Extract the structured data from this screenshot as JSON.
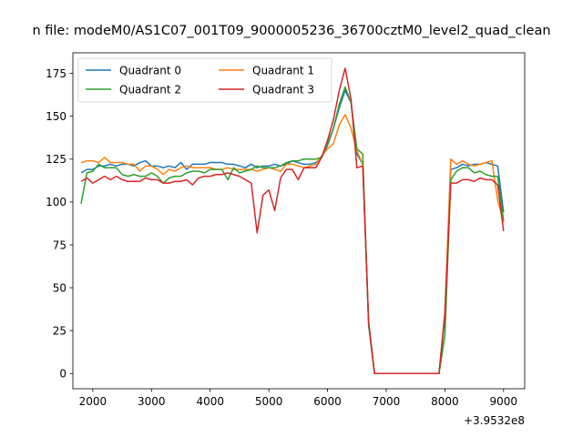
{
  "chart_data": {
    "type": "line",
    "title": "n file: modeM0/AS1C07_001T09_9000005236_36700cztM0_level2_quad_clean",
    "xlabel": "",
    "ylabel": "",
    "x_offset_label": "+3.9532e8",
    "x_offset": 395320000,
    "xlim": [
      395321660,
      395329360
    ],
    "ylim": [
      -8.9,
      187
    ],
    "x_ticks": [
      395322000,
      395323000,
      395324000,
      395325000,
      395326000,
      395327000,
      395328000,
      395329000
    ],
    "x_tick_labels": [
      "2000",
      "3000",
      "4000",
      "5000",
      "6000",
      "7000",
      "8000",
      "9000"
    ],
    "y_ticks": [
      0,
      25,
      50,
      75,
      100,
      125,
      150,
      175
    ],
    "y_tick_labels": [
      "0",
      "25",
      "50",
      "75",
      "100",
      "125",
      "150",
      "175"
    ],
    "grid": false,
    "legend": {
      "placement": "top-left",
      "columns": 2
    },
    "series": [
      {
        "name": "Quadrant 0",
        "color": "#1f77b4",
        "points": [
          [
            395321800,
            117
          ],
          [
            395321900,
            119
          ],
          [
            395322000,
            119
          ],
          [
            395322100,
            121
          ],
          [
            395322200,
            121
          ],
          [
            395322300,
            122
          ],
          [
            395322400,
            121
          ],
          [
            395322500,
            122
          ],
          [
            395322600,
            122
          ],
          [
            395322700,
            121
          ],
          [
            395322800,
            123
          ],
          [
            395322900,
            124
          ],
          [
            395323000,
            121
          ],
          [
            395323100,
            121
          ],
          [
            395323200,
            120
          ],
          [
            395323300,
            121
          ],
          [
            395323400,
            120
          ],
          [
            395323500,
            123
          ],
          [
            395323600,
            119
          ],
          [
            395323700,
            122
          ],
          [
            395323800,
            122
          ],
          [
            395323900,
            122
          ],
          [
            395324000,
            123
          ],
          [
            395324100,
            123
          ],
          [
            395324200,
            123
          ],
          [
            395324300,
            122
          ],
          [
            395324400,
            122
          ],
          [
            395324500,
            121
          ],
          [
            395324600,
            120
          ],
          [
            395324700,
            122
          ],
          [
            395324800,
            120
          ],
          [
            395324900,
            121
          ],
          [
            395325000,
            121
          ],
          [
            395325100,
            122
          ],
          [
            395325200,
            121
          ],
          [
            395325300,
            122
          ],
          [
            395325400,
            124
          ],
          [
            395325500,
            123
          ],
          [
            395325600,
            122
          ],
          [
            395325700,
            122
          ],
          [
            395325800,
            123
          ],
          [
            395325900,
            126
          ],
          [
            395326000,
            133
          ],
          [
            395326100,
            143
          ],
          [
            395326200,
            155
          ],
          [
            395326300,
            165
          ],
          [
            395326400,
            158
          ],
          [
            395326500,
            128
          ],
          [
            395326600,
            122
          ],
          [
            395326700,
            30
          ],
          [
            395326800,
            0
          ],
          [
            395326900,
            0
          ],
          [
            395327000,
            0
          ],
          [
            395327100,
            0
          ],
          [
            395327200,
            0
          ],
          [
            395327300,
            0
          ],
          [
            395327400,
            0
          ],
          [
            395327500,
            0
          ],
          [
            395327600,
            0
          ],
          [
            395327700,
            0
          ],
          [
            395327800,
            0
          ],
          [
            395327900,
            0
          ],
          [
            395328000,
            33
          ],
          [
            395328100,
            119
          ],
          [
            395328200,
            120
          ],
          [
            395328300,
            122
          ],
          [
            395328400,
            121
          ],
          [
            395328500,
            122
          ],
          [
            395328600,
            122
          ],
          [
            395328700,
            123
          ],
          [
            395328800,
            122
          ],
          [
            395328900,
            121
          ],
          [
            395329000,
            94
          ]
        ]
      },
      {
        "name": "Quadrant 1",
        "color": "#ff7f0e",
        "points": [
          [
            395321800,
            123
          ],
          [
            395321900,
            124
          ],
          [
            395322000,
            124
          ],
          [
            395322100,
            123
          ],
          [
            395322200,
            126
          ],
          [
            395322300,
            123
          ],
          [
            395322400,
            123
          ],
          [
            395322500,
            123
          ],
          [
            395322600,
            122
          ],
          [
            395322700,
            122
          ],
          [
            395322800,
            118
          ],
          [
            395322900,
            121
          ],
          [
            395323000,
            121
          ],
          [
            395323100,
            119
          ],
          [
            395323200,
            116
          ],
          [
            395323300,
            119
          ],
          [
            395323400,
            118
          ],
          [
            395323500,
            120
          ],
          [
            395323600,
            121
          ],
          [
            395323700,
            120
          ],
          [
            395323800,
            120
          ],
          [
            395323900,
            120
          ],
          [
            395324000,
            120
          ],
          [
            395324100,
            119
          ],
          [
            395324200,
            119
          ],
          [
            395324300,
            120
          ],
          [
            395324400,
            119
          ],
          [
            395324500,
            119
          ],
          [
            395324600,
            119
          ],
          [
            395324700,
            119
          ],
          [
            395324800,
            118
          ],
          [
            395324900,
            119
          ],
          [
            395325000,
            120
          ],
          [
            395325100,
            119
          ],
          [
            395325200,
            118
          ],
          [
            395325300,
            122
          ],
          [
            395325400,
            122
          ],
          [
            395325500,
            121
          ],
          [
            395325600,
            120
          ],
          [
            395325700,
            121
          ],
          [
            395325800,
            122
          ],
          [
            395325900,
            127
          ],
          [
            395326000,
            131
          ],
          [
            395326100,
            134
          ],
          [
            395326200,
            145
          ],
          [
            395326300,
            151
          ],
          [
            395326400,
            143
          ],
          [
            395326500,
            130
          ],
          [
            395326600,
            122
          ],
          [
            395326700,
            30
          ],
          [
            395326800,
            0
          ],
          [
            395326900,
            0
          ],
          [
            395327000,
            0
          ],
          [
            395327100,
            0
          ],
          [
            395327200,
            0
          ],
          [
            395327300,
            0
          ],
          [
            395327400,
            0
          ],
          [
            395327500,
            0
          ],
          [
            395327600,
            0
          ],
          [
            395327700,
            0
          ],
          [
            395327800,
            0
          ],
          [
            395327900,
            0
          ],
          [
            395328000,
            36
          ],
          [
            395328100,
            125
          ],
          [
            395328200,
            122
          ],
          [
            395328300,
            124
          ],
          [
            395328400,
            122
          ],
          [
            395328500,
            121
          ],
          [
            395328600,
            122
          ],
          [
            395328700,
            123
          ],
          [
            395328800,
            124
          ],
          [
            395328900,
            101
          ],
          [
            395329000,
            88
          ]
        ]
      },
      {
        "name": "Quadrant 2",
        "color": "#2ca02c",
        "points": [
          [
            395321800,
            99
          ],
          [
            395321900,
            117
          ],
          [
            395322000,
            118
          ],
          [
            395322100,
            122
          ],
          [
            395322200,
            120
          ],
          [
            395322300,
            120
          ],
          [
            395322400,
            120
          ],
          [
            395322500,
            116
          ],
          [
            395322600,
            115
          ],
          [
            395322700,
            116
          ],
          [
            395322800,
            115
          ],
          [
            395322900,
            115
          ],
          [
            395323000,
            117
          ],
          [
            395323100,
            115
          ],
          [
            395323200,
            111
          ],
          [
            395323300,
            114
          ],
          [
            395323400,
            115
          ],
          [
            395323500,
            115
          ],
          [
            395323600,
            117
          ],
          [
            395323700,
            118
          ],
          [
            395323800,
            118
          ],
          [
            395323900,
            117
          ],
          [
            395324000,
            119
          ],
          [
            395324100,
            119
          ],
          [
            395324200,
            119
          ],
          [
            395324300,
            113
          ],
          [
            395324400,
            120
          ],
          [
            395324500,
            117
          ],
          [
            395324600,
            118
          ],
          [
            395324700,
            119
          ],
          [
            395324800,
            121
          ],
          [
            395324900,
            120
          ],
          [
            395325000,
            120
          ],
          [
            395325100,
            120
          ],
          [
            395325200,
            121
          ],
          [
            395325300,
            123
          ],
          [
            395325400,
            124
          ],
          [
            395325500,
            124
          ],
          [
            395325600,
            125
          ],
          [
            395325700,
            125
          ],
          [
            395325800,
            125
          ],
          [
            395325900,
            126
          ],
          [
            395326000,
            134
          ],
          [
            395326100,
            143
          ],
          [
            395326200,
            157
          ],
          [
            395326300,
            167
          ],
          [
            395326400,
            158
          ],
          [
            395326500,
            131
          ],
          [
            395326600,
            128
          ],
          [
            395326700,
            28
          ],
          [
            395326800,
            0
          ],
          [
            395326900,
            0
          ],
          [
            395327000,
            0
          ],
          [
            395327100,
            0
          ],
          [
            395327200,
            0
          ],
          [
            395327300,
            0
          ],
          [
            395327400,
            0
          ],
          [
            395327500,
            0
          ],
          [
            395327600,
            0
          ],
          [
            395327700,
            0
          ],
          [
            395327800,
            0
          ],
          [
            395327900,
            0
          ],
          [
            395328000,
            22
          ],
          [
            395328100,
            113
          ],
          [
            395328200,
            118
          ],
          [
            395328300,
            120
          ],
          [
            395328400,
            120
          ],
          [
            395328500,
            117
          ],
          [
            395328600,
            118
          ],
          [
            395328700,
            116
          ],
          [
            395328800,
            115
          ],
          [
            395328900,
            115
          ],
          [
            395329000,
            89
          ]
        ]
      },
      {
        "name": "Quadrant 3",
        "color": "#d62728",
        "points": [
          [
            395321800,
            112
          ],
          [
            395321900,
            114
          ],
          [
            395322000,
            111
          ],
          [
            395322100,
            113
          ],
          [
            395322200,
            115
          ],
          [
            395322300,
            113
          ],
          [
            395322400,
            115
          ],
          [
            395322500,
            113
          ],
          [
            395322600,
            112
          ],
          [
            395322700,
            112
          ],
          [
            395322800,
            112
          ],
          [
            395322900,
            114
          ],
          [
            395323000,
            113
          ],
          [
            395323100,
            113
          ],
          [
            395323200,
            111
          ],
          [
            395323300,
            111
          ],
          [
            395323400,
            112
          ],
          [
            395323500,
            112
          ],
          [
            395323600,
            113
          ],
          [
            395323700,
            110
          ],
          [
            395323800,
            114
          ],
          [
            395323900,
            115
          ],
          [
            395324000,
            115
          ],
          [
            395324100,
            116
          ],
          [
            395324200,
            116
          ],
          [
            395324300,
            117
          ],
          [
            395324400,
            116
          ],
          [
            395324500,
            115
          ],
          [
            395324600,
            113
          ],
          [
            395324700,
            111
          ],
          [
            395324800,
            82
          ],
          [
            395324900,
            104
          ],
          [
            395325000,
            107
          ],
          [
            395325100,
            95
          ],
          [
            395325200,
            114
          ],
          [
            395325300,
            119
          ],
          [
            395325400,
            119
          ],
          [
            395325500,
            113
          ],
          [
            395325600,
            120
          ],
          [
            395325700,
            120
          ],
          [
            395325800,
            120
          ],
          [
            395325900,
            126
          ],
          [
            395326000,
            136
          ],
          [
            395326100,
            148
          ],
          [
            395326200,
            165
          ],
          [
            395326300,
            178
          ],
          [
            395326400,
            160
          ],
          [
            395326500,
            120
          ],
          [
            395326600,
            121
          ],
          [
            395326700,
            30
          ],
          [
            395326800,
            0
          ],
          [
            395326900,
            0
          ],
          [
            395327000,
            0
          ],
          [
            395327100,
            0
          ],
          [
            395327200,
            0
          ],
          [
            395327300,
            0
          ],
          [
            395327400,
            0
          ],
          [
            395327500,
            0
          ],
          [
            395327600,
            0
          ],
          [
            395327700,
            0
          ],
          [
            395327800,
            0
          ],
          [
            395327900,
            0
          ],
          [
            395328000,
            35
          ],
          [
            395328100,
            111
          ],
          [
            395328200,
            111
          ],
          [
            395328300,
            113
          ],
          [
            395328400,
            113
          ],
          [
            395328500,
            112
          ],
          [
            395328600,
            114
          ],
          [
            395328700,
            113
          ],
          [
            395328800,
            113
          ],
          [
            395328900,
            110
          ],
          [
            395329000,
            83
          ]
        ]
      }
    ]
  }
}
